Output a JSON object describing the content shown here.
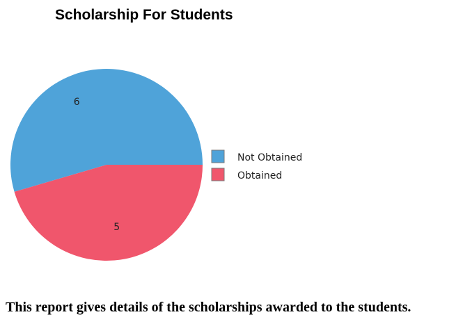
{
  "chart_data": {
    "type": "pie",
    "title": "Scholarship For Students",
    "categories": [
      "Not Obtained",
      "Obtained"
    ],
    "values": [
      6,
      5
    ],
    "colors": [
      "#4fa3d9",
      "#f0566c"
    ],
    "legend_position": "right",
    "data_labels": true
  },
  "caption": "This report gives details of the scholarships awarded to the students."
}
